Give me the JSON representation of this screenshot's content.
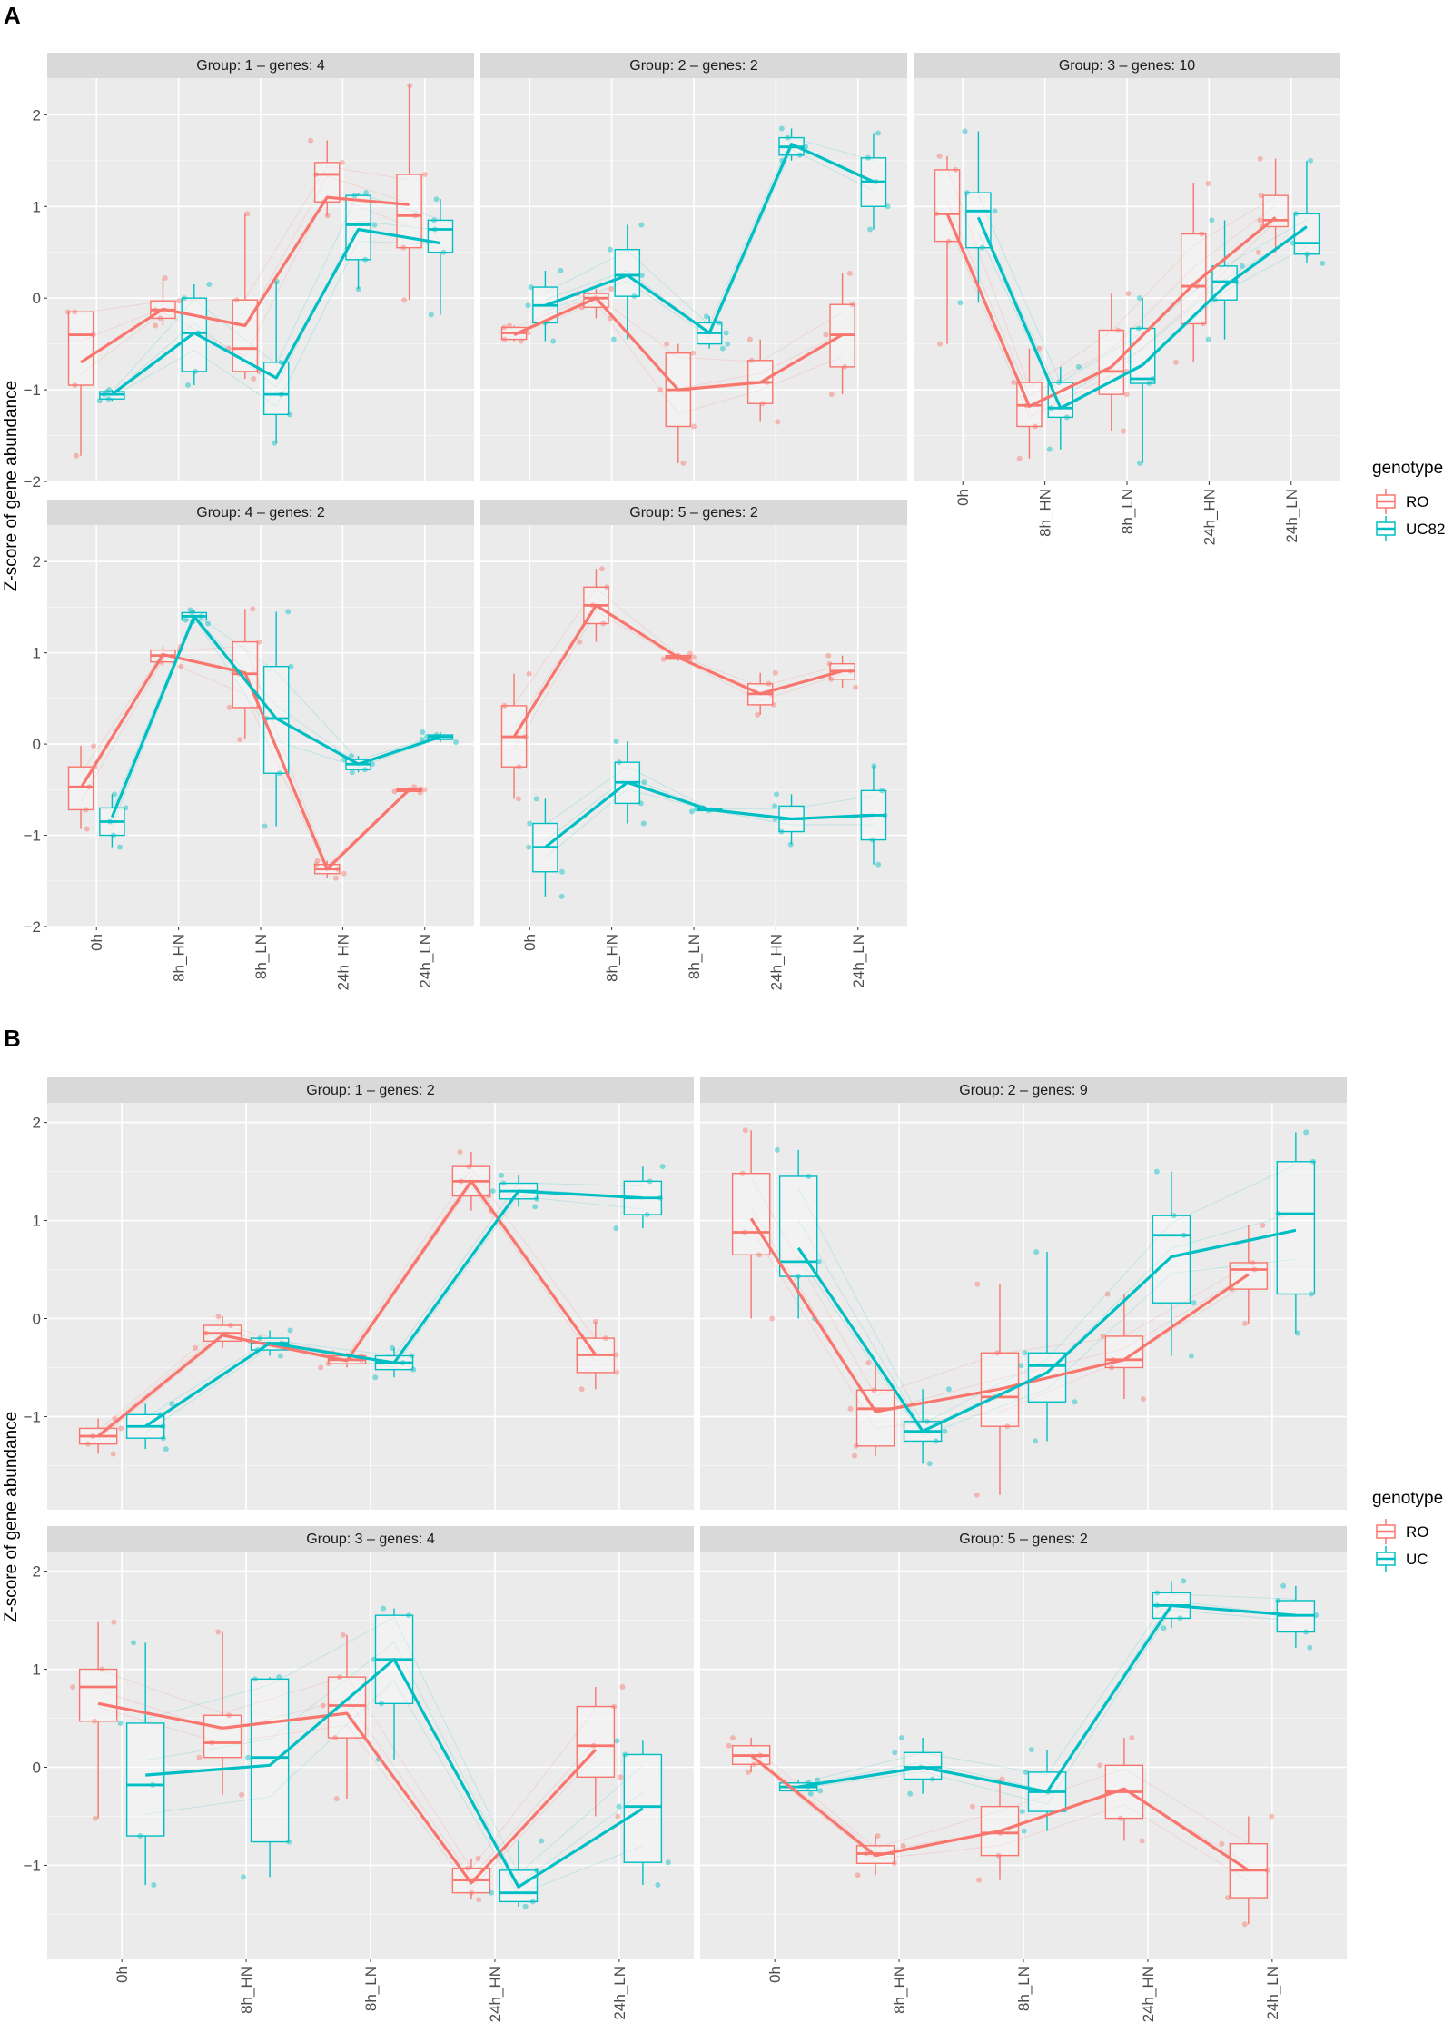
{
  "figure": {
    "panel_a_label": "A",
    "panel_b_label": "B",
    "y_axis_label": "Z-score of gene abundance"
  },
  "colors": {
    "RO": "#F8766D",
    "UC": "#00BFC4",
    "panel_bg": "#EBEBEB",
    "strip_bg": "#D9D9D9"
  },
  "legend_a": {
    "title": "genotype",
    "items": [
      "RO",
      "UC82"
    ]
  },
  "legend_b": {
    "title": "genotype",
    "items": [
      "RO",
      "UC"
    ]
  },
  "chart_data": [
    {
      "id": "A1",
      "type": "box+line",
      "title": "Group:  1 – genes: 4",
      "categories": [
        "0h",
        "8h_HN",
        "8h_LN",
        "24h_HN",
        "24h_LN"
      ],
      "ylim": [
        -2,
        2.4
      ],
      "yticks": [
        -2,
        -1,
        0,
        1,
        2
      ],
      "series": [
        {
          "name": "RO",
          "mean": [
            -0.7,
            -0.12,
            -0.3,
            1.1,
            1.02
          ],
          "boxes": [
            [
              -1.72,
              -0.95,
              -0.4,
              -0.15,
              -0.15
            ],
            [
              -0.3,
              -0.22,
              -0.13,
              -0.03,
              0.22
            ],
            [
              -0.88,
              -0.8,
              -0.55,
              -0.02,
              0.92
            ],
            [
              0.9,
              1.05,
              1.35,
              1.48,
              1.72
            ],
            [
              -0.02,
              0.55,
              0.9,
              1.35,
              2.32
            ]
          ]
        },
        {
          "name": "UC82",
          "mean": [
            -1.05,
            -0.38,
            -0.87,
            0.75,
            0.6
          ],
          "boxes": [
            [
              -1.12,
              -1.1,
              -1.05,
              -1.02,
              -1.0
            ],
            [
              -0.95,
              -0.8,
              -0.38,
              0.0,
              0.15
            ],
            [
              -1.58,
              -1.27,
              -1.05,
              -0.7,
              0.18
            ],
            [
              0.1,
              0.42,
              0.8,
              1.12,
              1.15
            ],
            [
              -0.18,
              0.5,
              0.75,
              0.85,
              1.08
            ]
          ]
        }
      ]
    },
    {
      "id": "A2",
      "type": "box+line",
      "title": "Group:  2 – genes: 2",
      "categories": [
        "0h",
        "8h_HN",
        "8h_LN",
        "24h_HN",
        "24h_LN"
      ],
      "ylim": [
        -2,
        2.4
      ],
      "yticks": [
        -2,
        -1,
        0,
        1,
        2
      ],
      "series": [
        {
          "name": "RO",
          "mean": [
            -0.4,
            0.0,
            -1.0,
            -0.92,
            -0.4
          ],
          "boxes": [
            [
              -0.47,
              -0.45,
              -0.38,
              -0.32,
              -0.3
            ],
            [
              -0.22,
              -0.1,
              0.0,
              0.05,
              0.1
            ],
            [
              -1.8,
              -1.4,
              -1.0,
              -0.6,
              -0.5
            ],
            [
              -1.35,
              -1.15,
              -0.92,
              -0.68,
              -0.45
            ],
            [
              -1.05,
              -0.75,
              -0.4,
              -0.07,
              0.27
            ]
          ]
        },
        {
          "name": "UC82",
          "mean": [
            -0.08,
            0.25,
            -0.38,
            1.68,
            1.27
          ],
          "boxes": [
            [
              -0.47,
              -0.27,
              -0.08,
              0.12,
              0.3
            ],
            [
              -0.45,
              0.02,
              0.25,
              0.53,
              0.8
            ],
            [
              -0.55,
              -0.5,
              -0.38,
              -0.27,
              -0.2
            ],
            [
              1.5,
              1.56,
              1.65,
              1.75,
              1.85
            ],
            [
              0.75,
              1.0,
              1.27,
              1.53,
              1.8
            ]
          ]
        }
      ]
    },
    {
      "id": "A3",
      "type": "box+line",
      "title": "Group:  3 – genes: 10",
      "categories": [
        "0h",
        "8h_HN",
        "8h_LN",
        "24h_HN",
        "24h_LN"
      ],
      "ylim": [
        -2,
        2.4
      ],
      "yticks": [
        -2,
        -1,
        0,
        1,
        2
      ],
      "series": [
        {
          "name": "RO",
          "mean": [
            0.92,
            -1.18,
            -0.75,
            0.15,
            0.88
          ],
          "boxes": [
            [
              -0.5,
              0.62,
              0.92,
              1.4,
              1.55
            ],
            [
              -1.75,
              -1.4,
              -1.17,
              -0.92,
              -0.55
            ],
            [
              -1.45,
              -1.05,
              -0.8,
              -0.35,
              0.05
            ],
            [
              -0.7,
              -0.28,
              0.13,
              0.7,
              1.25
            ],
            [
              0.5,
              0.78,
              0.85,
              1.12,
              1.52
            ]
          ]
        },
        {
          "name": "UC82",
          "mean": [
            0.88,
            -1.2,
            -0.73,
            0.13,
            0.78
          ],
          "boxes": [
            [
              -0.05,
              0.55,
              0.95,
              1.15,
              1.82
            ],
            [
              -1.65,
              -1.3,
              -1.2,
              -0.92,
              -0.75
            ],
            [
              -1.8,
              -0.93,
              -0.88,
              -0.33,
              0.0
            ],
            [
              -0.45,
              -0.02,
              0.18,
              0.35,
              0.85
            ],
            [
              0.38,
              0.48,
              0.6,
              0.92,
              1.5
            ]
          ]
        }
      ]
    },
    {
      "id": "A4",
      "type": "box+line",
      "title": "Group:  4 – genes: 2",
      "categories": [
        "0h",
        "8h_HN",
        "8h_LN",
        "24h_HN",
        "24h_LN"
      ],
      "ylim": [
        -2,
        2.4
      ],
      "yticks": [
        -2,
        -1,
        0,
        1,
        2
      ],
      "series": [
        {
          "name": "RO",
          "mean": [
            -0.48,
            0.98,
            0.78,
            -1.37,
            -0.5
          ],
          "boxes": [
            [
              -0.93,
              -0.72,
              -0.47,
              -0.25,
              -0.02
            ],
            [
              0.85,
              0.9,
              0.97,
              1.03,
              1.07
            ],
            [
              0.05,
              0.4,
              0.77,
              1.12,
              1.48
            ],
            [
              -1.47,
              -1.42,
              -1.37,
              -1.32,
              -1.28
            ],
            [
              -0.53,
              -0.52,
              -0.5,
              -0.49,
              -0.47
            ]
          ]
        },
        {
          "name": "UC82",
          "mean": [
            -0.8,
            1.4,
            0.28,
            -0.22,
            0.08
          ],
          "boxes": [
            [
              -1.13,
              -1.0,
              -0.85,
              -0.7,
              -0.55
            ],
            [
              1.32,
              1.36,
              1.4,
              1.44,
              1.47
            ],
            [
              -0.9,
              -0.32,
              0.28,
              0.85,
              1.45
            ],
            [
              -0.31,
              -0.28,
              -0.22,
              -0.17,
              -0.13
            ],
            [
              0.02,
              0.05,
              0.08,
              0.1,
              0.13
            ]
          ]
        }
      ]
    },
    {
      "id": "A5",
      "type": "box+line",
      "title": "Group:  5 – genes: 2",
      "categories": [
        "0h",
        "8h_HN",
        "8h_LN",
        "24h_HN",
        "24h_LN"
      ],
      "ylim": [
        -2,
        2.4
      ],
      "yticks": [
        -2,
        -1,
        0,
        1,
        2
      ],
      "series": [
        {
          "name": "RO",
          "mean": [
            0.08,
            1.52,
            0.95,
            0.55,
            0.8
          ],
          "boxes": [
            [
              -0.6,
              -0.25,
              0.08,
              0.42,
              0.77
            ],
            [
              1.12,
              1.32,
              1.52,
              1.72,
              1.92
            ],
            [
              0.91,
              0.93,
              0.95,
              0.97,
              0.99
            ],
            [
              0.32,
              0.43,
              0.55,
              0.66,
              0.78
            ],
            [
              0.62,
              0.71,
              0.8,
              0.88,
              0.97
            ]
          ]
        },
        {
          "name": "UC82",
          "mean": [
            -1.13,
            -0.42,
            -0.72,
            -0.82,
            -0.78
          ],
          "boxes": [
            [
              -1.67,
              -1.4,
              -1.13,
              -0.87,
              -0.6
            ],
            [
              -0.87,
              -0.65,
              -0.42,
              -0.2,
              0.03
            ],
            [
              -0.74,
              -0.73,
              -0.72,
              -0.71,
              -0.7
            ],
            [
              -1.1,
              -0.96,
              -0.82,
              -0.68,
              -0.55
            ],
            [
              -1.32,
              -1.05,
              -0.78,
              -0.51,
              -0.24
            ]
          ]
        }
      ]
    },
    {
      "id": "B1",
      "type": "box+line",
      "title": "Group:  1 – genes: 2",
      "categories": [
        "0h",
        "8h_HN",
        "8h_LN",
        "24h_HN",
        "24h_LN"
      ],
      "ylim": [
        -1.95,
        2.2
      ],
      "yticks": [
        -1,
        0,
        1,
        2
      ],
      "series": [
        {
          "name": "RO",
          "mean": [
            -1.2,
            -0.17,
            -0.43,
            1.4,
            -0.37
          ],
          "boxes": [
            [
              -1.38,
              -1.28,
              -1.2,
              -1.12,
              -1.02
            ],
            [
              -0.3,
              -0.23,
              -0.15,
              -0.07,
              0.02
            ],
            [
              -0.5,
              -0.46,
              -0.42,
              -0.38,
              -0.35
            ],
            [
              1.1,
              1.25,
              1.4,
              1.55,
              1.7
            ],
            [
              -0.72,
              -0.55,
              -0.37,
              -0.2,
              -0.03
            ]
          ]
        },
        {
          "name": "UC",
          "mean": [
            -1.1,
            -0.25,
            -0.45,
            1.3,
            1.23
          ],
          "boxes": [
            [
              -1.33,
              -1.22,
              -1.1,
              -0.98,
              -0.87
            ],
            [
              -0.38,
              -0.32,
              -0.25,
              -0.2,
              -0.12
            ],
            [
              -0.6,
              -0.52,
              -0.45,
              -0.38,
              -0.3
            ],
            [
              1.14,
              1.22,
              1.3,
              1.38,
              1.46
            ],
            [
              0.92,
              1.06,
              1.23,
              1.4,
              1.55
            ]
          ]
        }
      ]
    },
    {
      "id": "B2",
      "type": "box+line",
      "title": "Group:  2 – genes: 9",
      "categories": [
        "0h",
        "8h_HN",
        "8h_LN",
        "24h_HN",
        "24h_LN"
      ],
      "ylim": [
        -1.95,
        2.2
      ],
      "yticks": [
        -1,
        0,
        1,
        2
      ],
      "series": [
        {
          "name": "RO",
          "mean": [
            1.02,
            -0.95,
            -0.72,
            -0.42,
            0.45
          ],
          "boxes": [
            [
              0.0,
              0.65,
              0.88,
              1.48,
              1.92
            ],
            [
              -1.4,
              -1.3,
              -0.92,
              -0.73,
              -0.45
            ],
            [
              -1.8,
              -1.1,
              -0.8,
              -0.35,
              0.35
            ],
            [
              -0.82,
              -0.5,
              -0.42,
              -0.18,
              0.25
            ],
            [
              -0.05,
              0.3,
              0.5,
              0.57,
              0.95
            ]
          ]
        },
        {
          "name": "UC",
          "mean": [
            0.72,
            -1.15,
            -0.55,
            0.63,
            0.9
          ],
          "boxes": [
            [
              0.0,
              0.43,
              0.58,
              1.45,
              1.72
            ],
            [
              -1.48,
              -1.25,
              -1.15,
              -1.05,
              -0.72
            ],
            [
              -1.25,
              -0.85,
              -0.48,
              -0.35,
              0.68
            ],
            [
              -0.38,
              0.16,
              0.85,
              1.05,
              1.5
            ],
            [
              -0.15,
              0.25,
              1.07,
              1.6,
              1.9
            ]
          ]
        }
      ]
    },
    {
      "id": "B3",
      "type": "box+line",
      "title": "Group:  3 – genes: 4",
      "categories": [
        "0h",
        "8h_HN",
        "8h_LN",
        "24h_HN",
        "24h_LN"
      ],
      "ylim": [
        -1.95,
        2.2
      ],
      "yticks": [
        -1,
        0,
        1,
        2
      ],
      "series": [
        {
          "name": "RO",
          "mean": [
            0.65,
            0.4,
            0.55,
            -1.18,
            0.18
          ],
          "boxes": [
            [
              -0.52,
              0.47,
              0.82,
              1.0,
              1.48
            ],
            [
              -0.28,
              0.1,
              0.25,
              0.53,
              1.38
            ],
            [
              -0.32,
              0.3,
              0.63,
              0.92,
              1.35
            ],
            [
              -1.35,
              -1.28,
              -1.15,
              -1.03,
              -0.93
            ],
            [
              -0.5,
              -0.1,
              0.22,
              0.62,
              0.82
            ]
          ]
        },
        {
          "name": "UC",
          "mean": [
            -0.08,
            0.02,
            1.1,
            -1.22,
            -0.42
          ],
          "boxes": [
            [
              -1.2,
              -0.7,
              -0.18,
              0.45,
              1.27
            ],
            [
              -1.12,
              -0.76,
              0.1,
              0.9,
              0.92
            ],
            [
              0.08,
              0.65,
              1.1,
              1.55,
              1.62
            ],
            [
              -1.42,
              -1.37,
              -1.28,
              -1.05,
              -0.75
            ],
            [
              -1.2,
              -0.97,
              -0.4,
              0.13,
              0.27
            ]
          ]
        }
      ]
    },
    {
      "id": "B5",
      "type": "box+line",
      "title": "Group:  5 – genes: 2",
      "categories": [
        "0h",
        "8h_HN",
        "8h_LN",
        "24h_HN",
        "24h_LN"
      ],
      "ylim": [
        -1.95,
        2.2
      ],
      "yticks": [
        -1,
        0,
        1,
        2
      ],
      "series": [
        {
          "name": "RO",
          "mean": [
            0.12,
            -0.9,
            -0.65,
            -0.22,
            -1.05
          ],
          "boxes": [
            [
              -0.05,
              0.03,
              0.12,
              0.22,
              0.3
            ],
            [
              -1.1,
              -0.98,
              -0.88,
              -0.8,
              -0.7
            ],
            [
              -1.15,
              -0.9,
              -0.67,
              -0.4,
              -0.12
            ],
            [
              -0.75,
              -0.52,
              -0.25,
              0.02,
              0.3
            ],
            [
              -1.6,
              -1.33,
              -1.05,
              -0.78,
              -0.5
            ]
          ]
        },
        {
          "name": "UC",
          "mean": [
            -0.2,
            0.0,
            -0.25,
            1.65,
            1.55
          ],
          "boxes": [
            [
              -0.27,
              -0.24,
              -0.2,
              -0.16,
              -0.13
            ],
            [
              -0.27,
              -0.12,
              0.0,
              0.15,
              0.3
            ],
            [
              -0.65,
              -0.45,
              -0.25,
              -0.05,
              0.18
            ],
            [
              1.42,
              1.52,
              1.65,
              1.78,
              1.9
            ],
            [
              1.22,
              1.38,
              1.55,
              1.7,
              1.85
            ]
          ]
        }
      ]
    }
  ]
}
